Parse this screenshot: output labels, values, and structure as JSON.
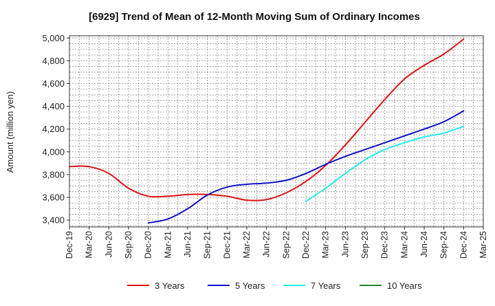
{
  "chart_data": {
    "type": "line",
    "title": "[6929]  Trend of Mean of 12-Month Moving Sum of Ordinary Incomes",
    "xlabel": "",
    "ylabel": "Amount (million yen)",
    "ylim": [
      3340,
      5020
    ],
    "yticks": [
      3400,
      3600,
      3800,
      4000,
      4200,
      4400,
      4600,
      4800,
      5000
    ],
    "ytick_labels": [
      "3,400",
      "3,600",
      "3,800",
      "4,000",
      "4,200",
      "4,400",
      "4,600",
      "4,800",
      "5,000"
    ],
    "categories": [
      "Dec-19",
      "Mar-20",
      "Jun-20",
      "Sep-20",
      "Dec-20",
      "Mar-21",
      "Jun-21",
      "Sep-21",
      "Dec-21",
      "Mar-22",
      "Jun-22",
      "Sep-22",
      "Dec-22",
      "Mar-23",
      "Jun-23",
      "Sep-23",
      "Dec-23",
      "Mar-24",
      "Jun-24",
      "Sep-24",
      "Dec-24",
      "Mar-25"
    ],
    "grid": true,
    "legend_position": "bottom",
    "series": [
      {
        "name": "3 Years",
        "color": "#dd1111",
        "values": [
          3870,
          3870,
          3810,
          3680,
          3610,
          3610,
          3625,
          3625,
          3610,
          3575,
          3580,
          3640,
          3740,
          3880,
          4060,
          4260,
          4460,
          4640,
          4760,
          4860,
          4990,
          null
        ]
      },
      {
        "name": "5 Years",
        "color": "#1111cc",
        "values": [
          null,
          null,
          null,
          null,
          3375,
          3410,
          3500,
          3620,
          3690,
          3715,
          3725,
          3750,
          3810,
          3890,
          3960,
          4020,
          4080,
          4140,
          4200,
          4265,
          4360,
          null
        ]
      },
      {
        "name": "7 Years",
        "color": "#22eeee",
        "values": [
          null,
          null,
          null,
          null,
          null,
          null,
          null,
          null,
          null,
          null,
          null,
          null,
          3565,
          3680,
          3810,
          3930,
          4020,
          4080,
          4130,
          4165,
          4225,
          null
        ]
      },
      {
        "name": "10 Years",
        "color": "#228822",
        "values": [
          null,
          null,
          null,
          null,
          null,
          null,
          null,
          null,
          null,
          null,
          null,
          null,
          null,
          null,
          null,
          null,
          null,
          null,
          null,
          null,
          null,
          null
        ]
      }
    ]
  }
}
